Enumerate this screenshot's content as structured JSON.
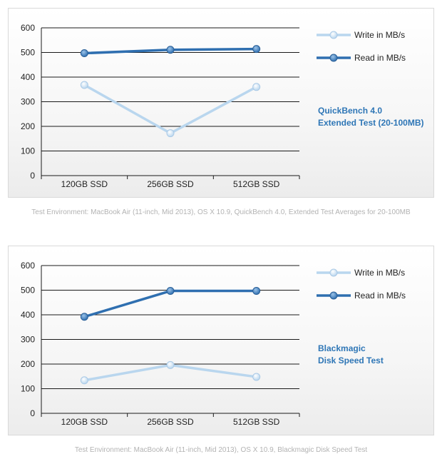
{
  "colors": {
    "write": "#b9d6ee",
    "write_marker": "#d2e6f6",
    "read": "#2f6fb0",
    "read_marker": "#4f8dc9",
    "annotation": "#2e76b6",
    "caption": "#b3b3b3"
  },
  "chart_data": [
    {
      "type": "line",
      "categories": [
        "120GB SSD",
        "256GB SSD",
        "512GB SSD"
      ],
      "ylim": [
        0,
        600
      ],
      "yticks": [
        "0",
        "100",
        "200",
        "300",
        "400",
        "500",
        "600"
      ],
      "series": [
        {
          "name": "Write in MB/s",
          "values": [
            368,
            172,
            360
          ]
        },
        {
          "name": "Read in MB/s",
          "values": [
            497,
            511,
            514
          ]
        }
      ],
      "annotation": [
        "QuickBench 4.0",
        "Extended Test (20-100MB)"
      ],
      "caption": "Test Environment: MacBook Air (11-inch, Mid 2013), OS X 10.9, QuickBench 4.0, Extended Test Averages for 20-100MB"
    },
    {
      "type": "line",
      "categories": [
        "120GB SSD",
        "256GB SSD",
        "512GB SSD"
      ],
      "ylim": [
        0,
        600
      ],
      "yticks": [
        "0",
        "100",
        "200",
        "300",
        "400",
        "500",
        "600"
      ],
      "series": [
        {
          "name": "Write in MB/s",
          "values": [
            134,
            196,
            148
          ]
        },
        {
          "name": "Read in MB/s",
          "values": [
            392,
            497,
            497
          ]
        }
      ],
      "annotation": [
        "Blackmagic",
        "Disk Speed Test"
      ],
      "caption": "Test Environment: MacBook Air (11-inch, Mid 2013), OS X 10.9, Blackmagic Disk Speed Test"
    }
  ]
}
